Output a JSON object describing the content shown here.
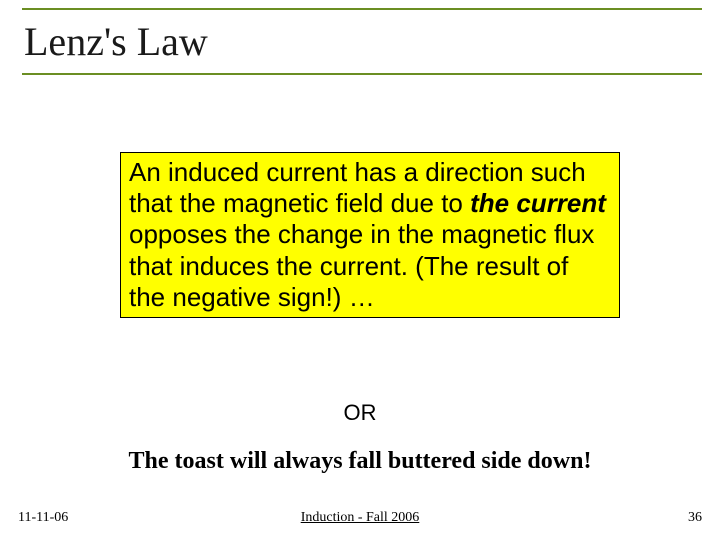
{
  "title": "Lenz's Law",
  "highlight": {
    "prefix": "An induced current has a direction such that the magnetic field due to ",
    "bold": "the current",
    "suffix": " opposes the change in the magnetic flux that induces the current. (The result of the negative sign!) …"
  },
  "or_label": "OR",
  "toast": "The toast will always fall buttered side down!",
  "footer": {
    "date": "11-11-06",
    "center": "Induction - Fall 2006",
    "page": "36"
  },
  "colors": {
    "accent_line": "#6b8e23",
    "highlight_bg": "#ffff00",
    "text": "#000000",
    "background": "#ffffff"
  }
}
